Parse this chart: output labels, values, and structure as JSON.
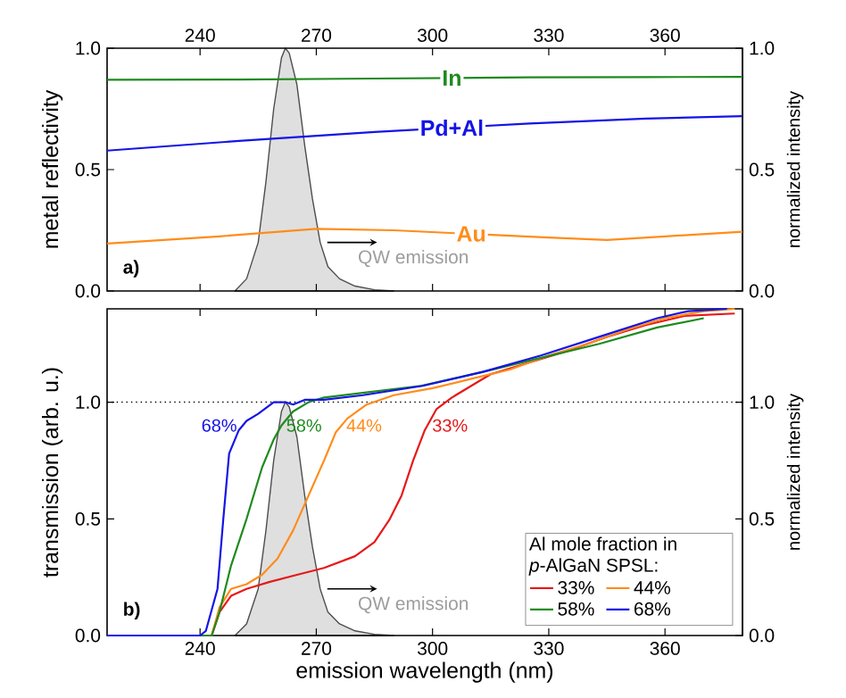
{
  "chart_data": [
    {
      "type": "line",
      "ylabel": "metal reflectivity",
      "y2label": "normalized intensity",
      "xlim": [
        216,
        380
      ],
      "xticks": [
        240,
        270,
        300,
        330,
        360
      ],
      "ylim": [
        0,
        1.0
      ],
      "yticks": [
        {
          "value": 0,
          "label": "0.0"
        },
        {
          "value": 0.5,
          "label": "0.5"
        },
        {
          "value": 1.0,
          "label": "1.0"
        }
      ],
      "y2lim": [
        0,
        1.0
      ],
      "y2ticks": [
        {
          "value": 0,
          "label": "0.0"
        },
        {
          "value": 0.5,
          "label": "0.5"
        },
        {
          "value": 1.0,
          "label": "1.0"
        }
      ],
      "series": [
        {
          "type": "area",
          "axis": "y2",
          "color": "#4d4d4d",
          "x": [
            249,
            252,
            255,
            257,
            259,
            261,
            262,
            263,
            265,
            267,
            269,
            271,
            273,
            276,
            280,
            285,
            290
          ],
          "values": [
            0,
            0.05,
            0.2,
            0.45,
            0.75,
            0.96,
            1.0,
            0.98,
            0.85,
            0.6,
            0.38,
            0.2,
            0.1,
            0.05,
            0.02,
            0.005,
            0
          ]
        },
        {
          "name": "In",
          "color": "#1f8a1f",
          "x": [
            216,
            250,
            285,
            325,
            355,
            380
          ],
          "values": [
            0.87,
            0.871,
            0.875,
            0.88,
            0.881,
            0.882
          ]
        },
        {
          "name": "Pd+Al",
          "color": "#1414e6",
          "x": [
            216,
            250,
            285,
            325,
            355,
            380
          ],
          "values": [
            0.578,
            0.618,
            0.655,
            0.69,
            0.71,
            0.72
          ]
        },
        {
          "name": "Au",
          "color": "#ff8c1a",
          "x": [
            216,
            245,
            270,
            290,
            330,
            345,
            360,
            380
          ],
          "values": [
            0.195,
            0.225,
            0.256,
            0.25,
            0.22,
            0.21,
            0.225,
            0.244
          ]
        }
      ],
      "annotations": [
        "a)",
        {
          "text": "QW emission",
          "x": 271,
          "y": 0.2
        }
      ]
    },
    {
      "type": "line",
      "xlabel": "emission wavelength (nm)",
      "ylabel": "transmission (arb. u.)",
      "y2label": "normalized intensity",
      "legend_title": "Al mole fraction in *p*-AlGaN SPSL:",
      "legend": "bottom right",
      "xlim": [
        216,
        380
      ],
      "xticks": [
        240,
        270,
        300,
        330,
        360
      ],
      "ylim": [
        0,
        1.4
      ],
      "yticks": [
        {
          "value": 0,
          "label": "0.0"
        },
        {
          "value": 0.5,
          "label": "0.5"
        },
        {
          "value": 1.0,
          "label": "1.0"
        }
      ],
      "y2lim": [
        0,
        1.4
      ],
      "y2ticks": [
        {
          "value": 0,
          "label": "0.0"
        },
        {
          "value": 0.5,
          "label": "0.5"
        },
        {
          "value": 1.0,
          "label": "1.0"
        }
      ],
      "ref_lines": [
        {
          "axis": "y",
          "value": 1.0,
          "line_style": "dotted",
          "color": "#000000"
        }
      ],
      "series": [
        {
          "type": "area",
          "axis": "y2",
          "color": "#4d4d4d",
          "x": [
            249,
            252,
            255,
            257,
            259,
            261,
            262,
            263,
            265,
            267,
            269,
            271,
            273,
            276,
            280,
            285,
            290
          ],
          "values": [
            0,
            0.05,
            0.2,
            0.45,
            0.75,
            0.96,
            1.0,
            0.98,
            0.85,
            0.6,
            0.38,
            0.2,
            0.1,
            0.05,
            0.02,
            0.005,
            0
          ]
        },
        {
          "name": "33%",
          "color": "#e61919",
          "x": [
            216,
            243,
            245,
            248,
            252,
            258,
            265,
            272,
            280,
            285,
            289,
            292,
            295,
            298,
            301,
            305,
            310,
            315,
            325,
            335,
            345,
            355,
            365,
            378
          ],
          "values": [
            0,
            0,
            0.1,
            0.17,
            0.2,
            0.23,
            0.26,
            0.29,
            0.34,
            0.4,
            0.5,
            0.6,
            0.75,
            0.88,
            0.97,
            1.02,
            1.07,
            1.12,
            1.17,
            1.22,
            1.28,
            1.33,
            1.37,
            1.38
          ]
        },
        {
          "name": "44%",
          "color": "#ff8c1a",
          "x": [
            216,
            243,
            245,
            248,
            252,
            256,
            260,
            264,
            268,
            272,
            275,
            278,
            283,
            290,
            300,
            310,
            320,
            330,
            340,
            350,
            360,
            370,
            378
          ],
          "values": [
            0,
            0,
            0.12,
            0.2,
            0.22,
            0.26,
            0.33,
            0.45,
            0.6,
            0.75,
            0.87,
            0.93,
            0.99,
            1.03,
            1.06,
            1.1,
            1.14,
            1.2,
            1.25,
            1.31,
            1.36,
            1.39,
            1.4
          ]
        },
        {
          "name": "58%",
          "color": "#1f8a1f",
          "x": [
            216,
            243,
            245,
            248,
            252,
            256,
            259,
            261,
            264,
            268,
            272,
            282,
            297,
            313,
            328,
            343,
            358,
            370
          ],
          "values": [
            0,
            0,
            0.1,
            0.3,
            0.5,
            0.72,
            0.84,
            0.9,
            0.96,
            1.0,
            1.02,
            1.04,
            1.07,
            1.13,
            1.19,
            1.25,
            1.32,
            1.36
          ]
        },
        {
          "name": "68%",
          "color": "#1414e6",
          "x": [
            216,
            240,
            241.5,
            244.5,
            246,
            247.5,
            250,
            252,
            255,
            259,
            262,
            264,
            267,
            272,
            282,
            297.5,
            313,
            328,
            343,
            358,
            366,
            376
          ],
          "values": [
            0,
            0,
            0.02,
            0.2,
            0.5,
            0.78,
            0.88,
            0.92,
            0.95,
            1.0,
            1.0,
            0.99,
            1.01,
            1.01,
            1.03,
            1.07,
            1.13,
            1.2,
            1.28,
            1.36,
            1.39,
            1.4
          ]
        }
      ],
      "annotations": [
        "b)",
        {
          "text": "QW emission",
          "x": 271,
          "y": 0.2
        },
        "33%",
        "44%",
        "58%",
        "68%"
      ]
    }
  ]
}
